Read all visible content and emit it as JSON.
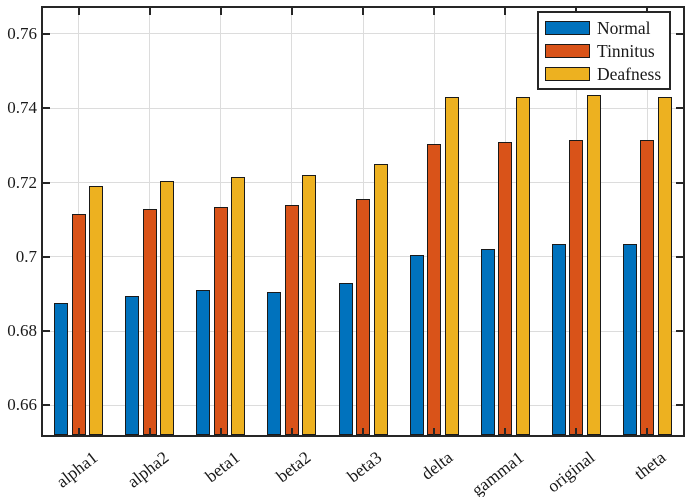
{
  "figure": {
    "background": "#ffffff"
  },
  "axes": {
    "spine_color": "#262626",
    "grid_color": "#dcdcdc",
    "bar_edge_color": "#1a1a1a"
  },
  "chart_data": {
    "type": "bar",
    "title": "",
    "xlabel": "",
    "ylabel": "",
    "grid": true,
    "legend_position": "top-right",
    "categories": [
      "alpha1",
      "alpha2",
      "beta1",
      "beta2",
      "beta3",
      "delta",
      "gamma1",
      "original",
      "theta"
    ],
    "series": [
      {
        "name": "Normal",
        "color": "#0072BD",
        "values": [
          0.6875,
          0.6895,
          0.691,
          0.6905,
          0.693,
          0.7005,
          0.702,
          0.7035,
          0.7035
        ]
      },
      {
        "name": "Tinnitus",
        "color": "#D95319",
        "values": [
          0.7115,
          0.713,
          0.7135,
          0.714,
          0.7155,
          0.7305,
          0.731,
          0.7315,
          0.7315
        ]
      },
      {
        "name": "Deafness",
        "color": "#EDB120",
        "values": [
          0.719,
          0.7205,
          0.7215,
          0.722,
          0.725,
          0.743,
          0.743,
          0.7435,
          0.743
        ]
      }
    ],
    "ylim": [
      0.652,
      0.767
    ],
    "yticks": [
      {
        "value": 0.66,
        "label": "0.66"
      },
      {
        "value": 0.68,
        "label": "0.68"
      },
      {
        "value": 0.7,
        "label": "0.7"
      },
      {
        "value": 0.72,
        "label": "0.72"
      },
      {
        "value": 0.74,
        "label": "0.74"
      },
      {
        "value": 0.76,
        "label": "0.76"
      }
    ]
  }
}
